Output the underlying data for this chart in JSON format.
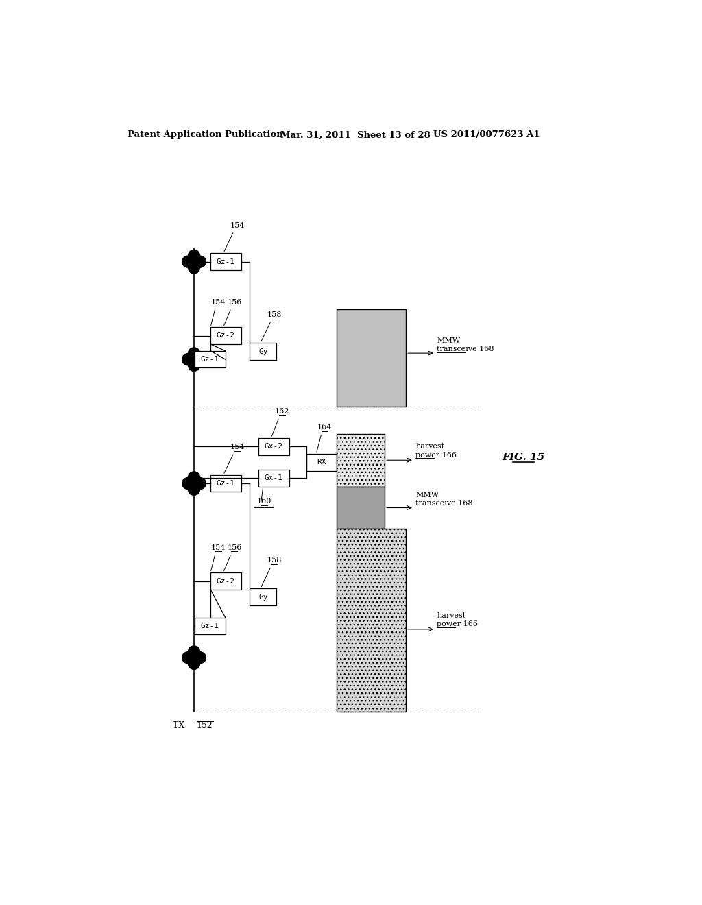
{
  "bg_color": "#ffffff",
  "header_left": "Patent Application Publication",
  "header_mid": "Mar. 31, 2011  Sheet 13 of 28",
  "header_right": "US 2011/0077623 A1",
  "fig_label": "FIG. 15",
  "tx_label": "TX 152"
}
